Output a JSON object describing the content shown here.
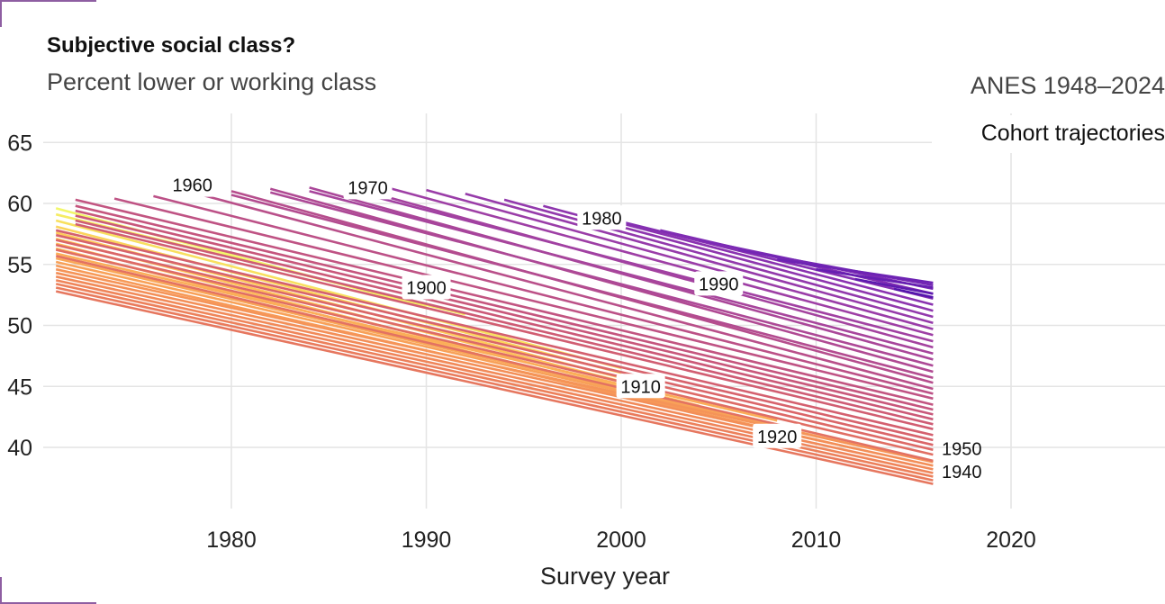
{
  "title": "Subjective social class?",
  "subtitle": "Percent lower or working class",
  "source": "ANES 1948–2024",
  "chart_data": {
    "type": "line",
    "title": "Subjective social class?",
    "subtitle": "Percent lower or working class",
    "annotation": "Cohort trajectories",
    "xlabel": "Survey year",
    "ylabel": "",
    "xlim": [
      1971,
      2028
    ],
    "ylim": [
      35,
      67
    ],
    "x_ticks": [
      "1980",
      "1990",
      "2000",
      "2010",
      "2020"
    ],
    "y_ticks": [
      "40",
      "45",
      "50",
      "55",
      "60",
      "65"
    ],
    "grid": true,
    "legend": "none (direct labels)",
    "color_scale": "plasma: yellow (1900) to orange (1940) to pink (1950) to purple (1970) to indigo (1990)",
    "cohort_labels": [
      "1900",
      "1910",
      "1920",
      "1940",
      "1950",
      "1960",
      "1970",
      "1980",
      "1990"
    ],
    "series": [
      {
        "cohort": 1898,
        "color": "#f2f76b",
        "points": [
          [
            1971,
            59.6
          ],
          [
            1990,
            51.5
          ]
        ]
      },
      {
        "cohort": 1899,
        "color": "#f5ec63",
        "points": [
          [
            1971,
            59.1
          ],
          [
            1992,
            50.9
          ]
        ]
      },
      {
        "cohort": 1900,
        "color": "#f8e05f",
        "points": [
          [
            1971,
            58.6
          ],
          [
            2000,
            46.5
          ]
        ]
      },
      {
        "cohort": 1901,
        "color": "#fbd45c",
        "points": [
          [
            1971,
            58.1
          ],
          [
            2000,
            46.1
          ]
        ]
      },
      {
        "cohort": 1902,
        "color": "#fdc95b",
        "points": [
          [
            1971,
            57.6
          ],
          [
            2000,
            45.7
          ]
        ]
      },
      {
        "cohort": 1903,
        "color": "#fec15a",
        "points": [
          [
            1971,
            57.1
          ],
          [
            2000,
            45.4
          ]
        ]
      },
      {
        "cohort": 1904,
        "color": "#fdbb59",
        "points": [
          [
            1971,
            56.7
          ],
          [
            2004,
            43.4
          ]
        ]
      },
      {
        "cohort": 1905,
        "color": "#fcb458",
        "points": [
          [
            1971,
            56.3
          ],
          [
            2004,
            43.1
          ]
        ]
      },
      {
        "cohort": 1906,
        "color": "#fbae58",
        "points": [
          [
            1971,
            55.9
          ],
          [
            2008,
            42.2
          ]
        ]
      },
      {
        "cohort": 1907,
        "color": "#f9a758",
        "points": [
          [
            1971,
            55.5
          ],
          [
            2008,
            41.8
          ]
        ]
      },
      {
        "cohort": 1908,
        "color": "#f8a158",
        "points": [
          [
            1971,
            55.2
          ],
          [
            2012,
            40.2
          ]
        ]
      },
      {
        "cohort": 1909,
        "color": "#f79a58",
        "points": [
          [
            1971,
            54.9
          ],
          [
            2012,
            39.9
          ]
        ]
      },
      {
        "cohort": 1910,
        "color": "#f59458",
        "points": [
          [
            1971,
            54.6
          ],
          [
            2016,
            38.8
          ]
        ]
      },
      {
        "cohort": 1911,
        "color": "#f38f58",
        "points": [
          [
            1971,
            54.3
          ],
          [
            2016,
            38.5
          ]
        ]
      },
      {
        "cohort": 1912,
        "color": "#f18a59",
        "points": [
          [
            1971,
            54.0
          ],
          [
            2016,
            38.2
          ]
        ]
      },
      {
        "cohort": 1913,
        "color": "#ef855a",
        "points": [
          [
            1971,
            53.7
          ],
          [
            2016,
            37.9
          ]
        ]
      },
      {
        "cohort": 1914,
        "color": "#ec805b",
        "points": [
          [
            1971,
            53.4
          ],
          [
            2016,
            37.6
          ]
        ]
      },
      {
        "cohort": 1915,
        "color": "#e97b5d",
        "points": [
          [
            1971,
            53.1
          ],
          [
            2016,
            37.3
          ]
        ]
      },
      {
        "cohort": 1916,
        "color": "#e6775f",
        "points": [
          [
            1971,
            52.8
          ],
          [
            2016,
            37.0
          ]
        ]
      },
      {
        "cohort": 1917,
        "color": "#e37262",
        "points": [
          [
            1971,
            55.7
          ],
          [
            2016,
            38.9
          ]
        ]
      },
      {
        "cohort": 1918,
        "color": "#e06e64",
        "points": [
          [
            1971,
            56.2
          ],
          [
            2016,
            39.4
          ]
        ]
      },
      {
        "cohort": 1919,
        "color": "#dd6a67",
        "points": [
          [
            1971,
            56.6
          ],
          [
            2016,
            39.8
          ]
        ]
      },
      {
        "cohort": 1920,
        "color": "#da6669",
        "points": [
          [
            1971,
            57.0
          ],
          [
            2016,
            40.2
          ]
        ]
      },
      {
        "cohort": 1921,
        "color": "#d7636c",
        "points": [
          [
            1971,
            57.4
          ],
          [
            2016,
            40.6
          ]
        ]
      },
      {
        "cohort": 1922,
        "color": "#d4606f",
        "points": [
          [
            1971,
            57.8
          ],
          [
            2016,
            41.0
          ]
        ]
      },
      {
        "cohort": 1923,
        "color": "#d15e72",
        "points": [
          [
            1972,
            58.3
          ],
          [
            2016,
            41.5
          ]
        ]
      },
      {
        "cohort": 1924,
        "color": "#ce5c75",
        "points": [
          [
            1972,
            58.6
          ],
          [
            2016,
            41.9
          ]
        ]
      },
      {
        "cohort": 1925,
        "color": "#cb5a78",
        "points": [
          [
            1972,
            59.0
          ],
          [
            2016,
            42.3
          ]
        ]
      },
      {
        "cohort": 1926,
        "color": "#c8587b",
        "points": [
          [
            1972,
            59.4
          ],
          [
            2016,
            42.7
          ]
        ]
      },
      {
        "cohort": 1927,
        "color": "#c5567e",
        "points": [
          [
            1972,
            59.8
          ],
          [
            2016,
            43.1
          ]
        ]
      },
      {
        "cohort": 1928,
        "color": "#c25581",
        "points": [
          [
            1972,
            60.3
          ],
          [
            2016,
            43.5
          ]
        ]
      },
      {
        "cohort": 1929,
        "color": "#bf5384",
        "points": [
          [
            1974,
            60.4
          ],
          [
            2016,
            44.0
          ]
        ]
      },
      {
        "cohort": 1930,
        "color": "#bc5187",
        "points": [
          [
            1976,
            60.6
          ],
          [
            2016,
            44.4
          ]
        ]
      },
      {
        "cohort": 1931,
        "color": "#b9508a",
        "points": [
          [
            1978,
            60.9
          ],
          [
            2016,
            44.8
          ]
        ]
      },
      {
        "cohort": 1932,
        "color": "#b64e8d",
        "points": [
          [
            1980,
            61.0
          ],
          [
            2016,
            45.3
          ]
        ]
      },
      {
        "cohort": 1933,
        "color": "#b34c90",
        "points": [
          [
            1980,
            60.7
          ],
          [
            2016,
            45.7
          ]
        ]
      },
      {
        "cohort": 1934,
        "color": "#b04a93",
        "points": [
          [
            1982,
            61.2
          ],
          [
            2016,
            46.2
          ]
        ]
      },
      {
        "cohort": 1935,
        "color": "#ad4996",
        "points": [
          [
            1982,
            60.9
          ],
          [
            2016,
            46.7
          ]
        ]
      },
      {
        "cohort": 1936,
        "color": "#aa4799",
        "points": [
          [
            1984,
            61.3
          ],
          [
            2016,
            47.2
          ]
        ]
      },
      {
        "cohort": 1937,
        "color": "#a7459c",
        "points": [
          [
            1984,
            61.0
          ],
          [
            2016,
            47.7
          ]
        ]
      },
      {
        "cohort": 1938,
        "color": "#a4439f",
        "points": [
          [
            1986,
            61.4
          ],
          [
            2016,
            48.2
          ]
        ]
      },
      {
        "cohort": 1939,
        "color": "#a141a2",
        "points": [
          [
            1986,
            61.1
          ],
          [
            2016,
            48.7
          ]
        ]
      },
      {
        "cohort": 1940,
        "color": "#9e3fa5",
        "points": [
          [
            1988,
            61.3
          ],
          [
            2016,
            49.2
          ]
        ]
      },
      {
        "cohort": 1941,
        "color": "#9a3da8",
        "points": [
          [
            1990,
            61.1
          ],
          [
            2016,
            49.7
          ]
        ]
      },
      {
        "cohort": 1942,
        "color": "#963baa",
        "points": [
          [
            1992,
            60.8
          ],
          [
            2016,
            50.2
          ]
        ]
      },
      {
        "cohort": 1943,
        "color": "#9239ac",
        "points": [
          [
            1994,
            60.3
          ],
          [
            2016,
            50.7
          ]
        ]
      },
      {
        "cohort": 1944,
        "color": "#8e36ae",
        "points": [
          [
            1996,
            59.8
          ],
          [
            2016,
            51.2
          ]
        ]
      },
      {
        "cohort": 1945,
        "color": "#8a33b0",
        "points": [
          [
            1998,
            59.2
          ],
          [
            2016,
            51.7
          ]
        ]
      },
      {
        "cohort": 1946,
        "color": "#8530b2",
        "points": [
          [
            2000,
            58.5
          ],
          [
            2016,
            52.2
          ]
        ]
      },
      {
        "cohort": 1947,
        "color": "#802db3",
        "points": [
          [
            2002,
            57.8
          ],
          [
            2016,
            52.6
          ]
        ]
      },
      {
        "cohort": 1948,
        "color": "#7b2ab4",
        "points": [
          [
            2004,
            57.0
          ],
          [
            2016,
            53.0
          ]
        ]
      },
      {
        "cohort": 1949,
        "color": "#7427b4",
        "points": [
          [
            2006,
            56.2
          ],
          [
            2016,
            53.3
          ]
        ]
      },
      {
        "cohort": 1950,
        "color": "#6d23b3",
        "points": [
          [
            2008,
            55.4
          ],
          [
            2016,
            53.5
          ]
        ]
      },
      {
        "cohort": 1951,
        "color": "#661fb1",
        "points": [
          [
            2010,
            54.6
          ],
          [
            2016,
            53.1
          ]
        ]
      },
      {
        "cohort": 1952,
        "color": "#5e1baf",
        "points": [
          [
            2012,
            53.8
          ],
          [
            2016,
            52.6
          ]
        ]
      },
      {
        "cohort": 1953,
        "color": "#5516ac",
        "points": [
          [
            2014,
            53.0
          ],
          [
            2016,
            52.3
          ]
        ]
      }
    ]
  }
}
